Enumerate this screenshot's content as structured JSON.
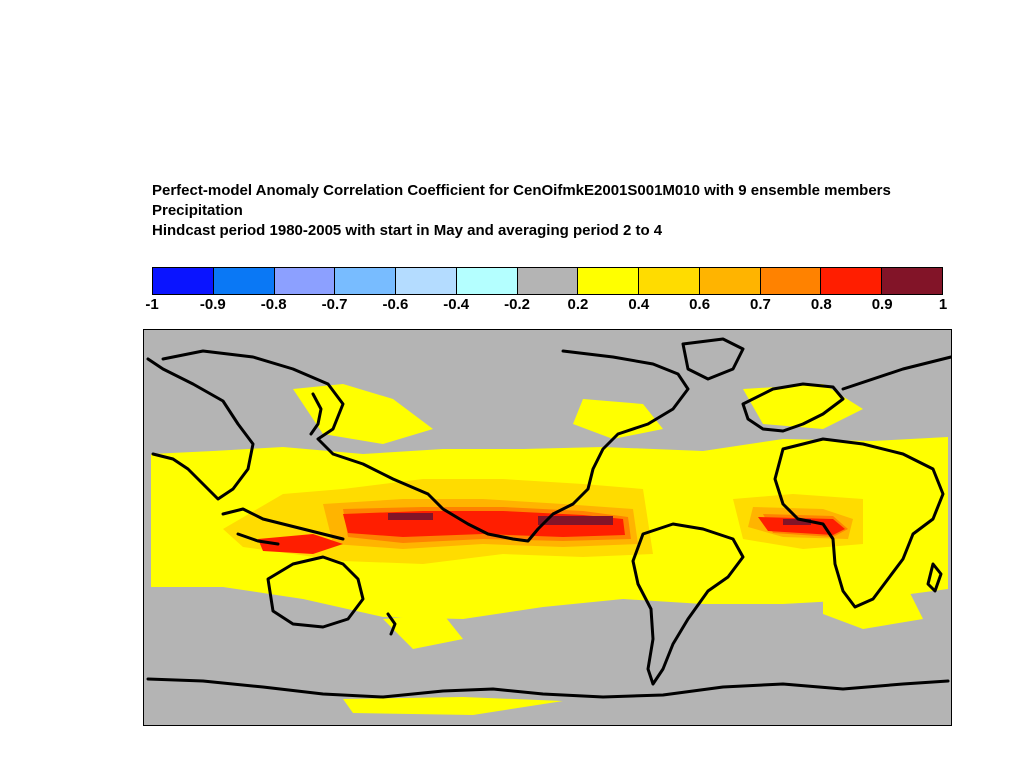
{
  "title": {
    "line1": "Perfect-model Anomaly Correlation Coefficient for CenOifmkE2001S001M010 with  9 ensemble members",
    "line2": "Precipitation",
    "line3": "Hindcast period 1980-2005 with start in May and averaging period 2 to 4"
  },
  "colorbar": {
    "colors": [
      "#0a14ff",
      "#0a78f5",
      "#8ca0ff",
      "#78bcff",
      "#b4dcff",
      "#b4ffff",
      "#b4b4b4",
      "#ffff00",
      "#ffdc00",
      "#ffb400",
      "#ff8200",
      "#ff1e00",
      "#821428"
    ],
    "ticks": [
      "-1",
      "-0.9",
      "-0.8",
      "-0.7",
      "-0.6",
      "-0.4",
      "-0.2",
      "0.2",
      "0.4",
      "0.6",
      "0.7",
      "0.8",
      "0.9",
      "1"
    ]
  },
  "map": {
    "background_color": "#b4b4b4",
    "coastline_color": "#000000"
  }
}
